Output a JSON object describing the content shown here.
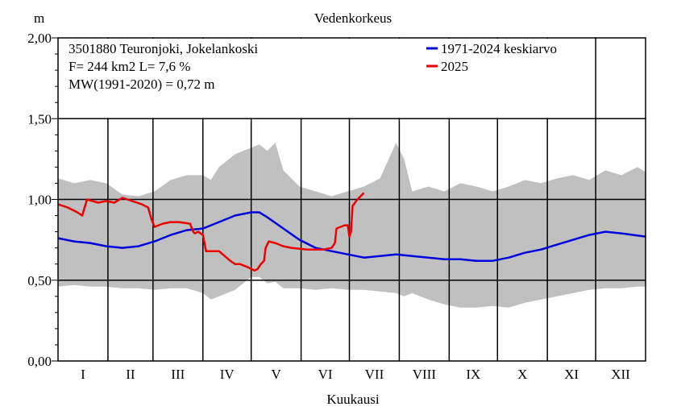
{
  "chart_data": {
    "type": "area",
    "title": "Vedenkorkeus",
    "ylabel": "m",
    "xlabel": "Kuukausi",
    "ylim": [
      0,
      2
    ],
    "xlim": [
      0,
      365
    ],
    "grid": true,
    "legend_position": "top-right",
    "yticks": [
      {
        "value": 0,
        "label": "0,00"
      },
      {
        "value": 0.5,
        "label": "0,50"
      },
      {
        "value": 1,
        "label": "1,00"
      },
      {
        "value": 1.5,
        "label": "1,50"
      },
      {
        "value": 2,
        "label": "2,00"
      }
    ],
    "month_labels": [
      "I",
      "II",
      "III",
      "IV",
      "V",
      "VI",
      "VII",
      "VIII",
      "IX",
      "X",
      "XI",
      "XII"
    ],
    "month_boundaries": [
      0,
      31,
      59,
      90,
      120,
      151,
      181,
      212,
      243,
      273,
      304,
      334,
      365
    ],
    "info_lines": [
      "3501880 Teuronjoki, Jokelankoski",
      "F=    244 km2 L=  7,6 %",
      "MW(1991-2020) = 0,72 m"
    ],
    "series": [
      {
        "name": "1971-2024 keskiarvo",
        "color": "#0000dd",
        "x": [
          0,
          10,
          20,
          30,
          40,
          50,
          60,
          70,
          80,
          90,
          100,
          110,
          120,
          125,
          130,
          140,
          150,
          160,
          170,
          180,
          190,
          200,
          210,
          220,
          230,
          240,
          250,
          260,
          270,
          280,
          290,
          300,
          310,
          320,
          330,
          340,
          350,
          365
        ],
        "y": [
          0.76,
          0.74,
          0.73,
          0.71,
          0.7,
          0.71,
          0.74,
          0.78,
          0.81,
          0.82,
          0.86,
          0.9,
          0.92,
          0.92,
          0.89,
          0.82,
          0.75,
          0.7,
          0.68,
          0.66,
          0.64,
          0.65,
          0.66,
          0.65,
          0.64,
          0.63,
          0.63,
          0.62,
          0.62,
          0.64,
          0.67,
          0.69,
          0.72,
          0.75,
          0.78,
          0.8,
          0.79,
          0.77
        ]
      },
      {
        "name": "2025",
        "color": "#ee0000",
        "x": [
          0,
          6,
          12,
          15,
          18,
          25,
          30,
          35,
          40,
          43,
          46,
          52,
          56,
          58,
          60,
          65,
          70,
          75,
          82,
          84,
          85,
          87,
          90,
          92,
          95,
          100,
          107,
          110,
          113,
          118,
          122,
          124,
          126,
          128,
          129,
          131,
          135,
          140,
          145,
          155,
          165,
          170,
          172,
          173,
          178,
          180,
          181,
          182,
          183,
          186,
          190
        ],
        "y": [
          0.97,
          0.95,
          0.92,
          0.9,
          1.0,
          0.98,
          0.99,
          0.98,
          1.01,
          1.0,
          0.99,
          0.97,
          0.95,
          0.88,
          0.83,
          0.85,
          0.86,
          0.86,
          0.85,
          0.8,
          0.79,
          0.8,
          0.78,
          0.68,
          0.68,
          0.68,
          0.62,
          0.6,
          0.6,
          0.58,
          0.56,
          0.57,
          0.6,
          0.62,
          0.7,
          0.74,
          0.73,
          0.71,
          0.7,
          0.69,
          0.69,
          0.7,
          0.73,
          0.82,
          0.84,
          0.84,
          0.77,
          0.8,
          0.96,
          1.0,
          1.04
        ]
      }
    ],
    "range_band": {
      "color": "#c0c0c0",
      "x": [
        0,
        10,
        20,
        30,
        40,
        50,
        60,
        70,
        80,
        90,
        95,
        100,
        110,
        120,
        125,
        130,
        135,
        140,
        150,
        160,
        170,
        180,
        190,
        200,
        210,
        215,
        220,
        230,
        240,
        250,
        260,
        270,
        280,
        290,
        300,
        310,
        320,
        330,
        340,
        350,
        360,
        365
      ],
      "max": [
        1.13,
        1.1,
        1.12,
        1.1,
        1.03,
        1.02,
        1.05,
        1.12,
        1.15,
        1.15,
        1.12,
        1.2,
        1.28,
        1.32,
        1.34,
        1.3,
        1.35,
        1.18,
        1.08,
        1.05,
        1.02,
        1.05,
        1.08,
        1.13,
        1.35,
        1.25,
        1.05,
        1.08,
        1.05,
        1.1,
        1.08,
        1.05,
        1.08,
        1.12,
        1.1,
        1.13,
        1.15,
        1.12,
        1.18,
        1.15,
        1.2,
        1.17
      ],
      "min": [
        0.46,
        0.47,
        0.46,
        0.46,
        0.45,
        0.45,
        0.44,
        0.45,
        0.45,
        0.42,
        0.38,
        0.4,
        0.44,
        0.52,
        0.52,
        0.48,
        0.49,
        0.45,
        0.45,
        0.44,
        0.45,
        0.44,
        0.44,
        0.43,
        0.42,
        0.4,
        0.42,
        0.38,
        0.35,
        0.33,
        0.33,
        0.34,
        0.33,
        0.36,
        0.38,
        0.4,
        0.42,
        0.44,
        0.45,
        0.45,
        0.46,
        0.46
      ]
    }
  }
}
